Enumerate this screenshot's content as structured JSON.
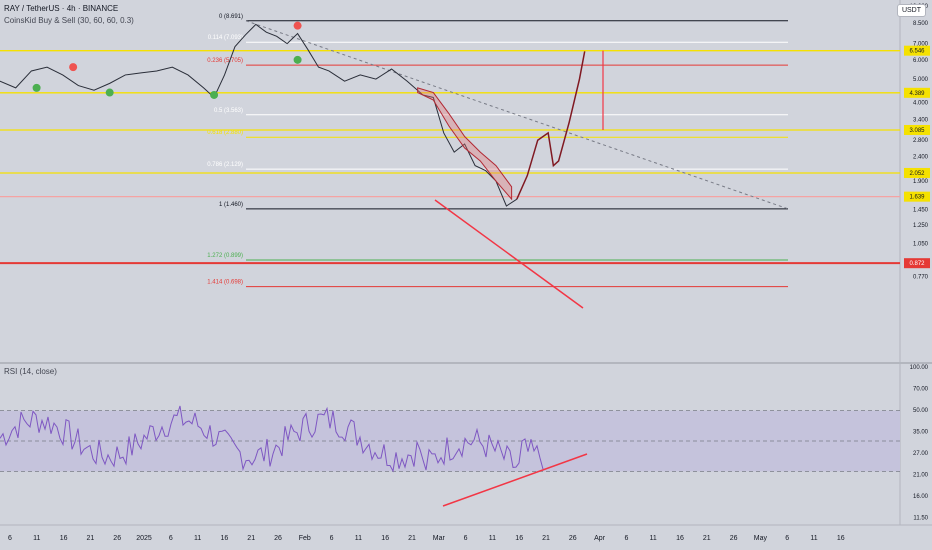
{
  "header": {
    "symbol": "RAY / TetherUS · 4h · BINANCE",
    "indicator": "CoinsKid Buy & Sell (30, 60, 60, 0.3)",
    "rsi_title": "RSI (14, close)",
    "currency_badge": "USDT"
  },
  "chart_data": [
    {
      "type": "line",
      "scale": "log",
      "price_axis_labels": [
        "10.000",
        "8.500",
        "7.000",
        "6.000",
        "5.000",
        "4.000",
        "3.400",
        "2.800",
        "2.400",
        "1.900",
        "1.450",
        "1.250",
        "1.050",
        "0.770"
      ],
      "price_flags": [
        {
          "value": "6.546",
          "color": "#f5e100"
        },
        {
          "value": "4.389",
          "color": "#f5e100"
        },
        {
          "value": "3.085",
          "color": "#f5e100"
        },
        {
          "value": "2.052",
          "color": "#f5e100"
        },
        {
          "value": "1.639",
          "color": "#f5e100"
        },
        {
          "value": "0.872",
          "color": "#e53935"
        }
      ],
      "fib_levels": [
        {
          "label": "0 (8.691)",
          "value": 8.691,
          "color": "#131722"
        },
        {
          "label": "0.114 (7.093)",
          "value": 7.093,
          "color": "#ffffff"
        },
        {
          "label": "0.236 (5.705)",
          "value": 5.705,
          "color": "#e53935"
        },
        {
          "label": "0.5 (3.563)",
          "value": 3.563,
          "color": "#ffffff"
        },
        {
          "label": "0.618 (2.880)",
          "value": 2.88,
          "color": "#f5e100"
        },
        {
          "label": "0.786 (2.129)",
          "value": 2.129,
          "color": "#ffffff"
        },
        {
          "label": "1 (1.460)",
          "value": 1.46,
          "color": "#131722"
        },
        {
          "label": "1.272 (0.899)",
          "value": 0.899,
          "color": "#4caf50"
        },
        {
          "label": "1.414 (0.698)",
          "value": 0.698,
          "color": "#e53935"
        }
      ],
      "horizontal_levels": [
        {
          "value": 6.546,
          "color": "#f5e100"
        },
        {
          "value": 4.389,
          "color": "#f5e100"
        },
        {
          "value": 3.085,
          "color": "#f5e100"
        },
        {
          "value": 2.052,
          "color": "#f5e100"
        },
        {
          "value": 1.639,
          "color": "#f5a3a3"
        },
        {
          "value": 0.872,
          "color": "#e53935"
        }
      ],
      "price_path": [
        [
          "2024-12-01",
          5.1
        ],
        [
          "2024-12-04",
          4.9
        ],
        [
          "2024-12-07",
          4.6
        ],
        [
          "2024-12-10",
          5.4
        ],
        [
          "2024-12-13",
          5.6
        ],
        [
          "2024-12-16",
          5.2
        ],
        [
          "2024-12-19",
          4.7
        ],
        [
          "2024-12-22",
          4.5
        ],
        [
          "2024-12-25",
          4.8
        ],
        [
          "2024-12-28",
          5.2
        ],
        [
          "2024-12-31",
          5.3
        ],
        [
          "2025-01-03",
          5.4
        ],
        [
          "2025-01-06",
          5.6
        ],
        [
          "2025-01-09",
          5.2
        ],
        [
          "2025-01-12",
          4.6
        ],
        [
          "2025-01-14",
          4.2
        ],
        [
          "2025-01-16",
          5.2
        ],
        [
          "2025-01-18",
          6.8
        ],
        [
          "2025-01-20",
          7.6
        ],
        [
          "2025-01-22",
          8.4
        ],
        [
          "2025-01-24",
          7.8
        ],
        [
          "2025-01-26",
          7.5
        ],
        [
          "2025-01-28",
          7.0
        ],
        [
          "2025-01-30",
          7.7
        ],
        [
          "2025-02-01",
          6.6
        ],
        [
          "2025-02-03",
          5.6
        ],
        [
          "2025-02-05",
          5.4
        ],
        [
          "2025-02-08",
          4.9
        ],
        [
          "2025-02-11",
          5.2
        ],
        [
          "2025-02-14",
          5.0
        ],
        [
          "2025-02-17",
          5.5
        ],
        [
          "2025-02-20",
          4.9
        ],
        [
          "2025-02-23",
          4.3
        ],
        [
          "2025-02-25",
          4.2
        ],
        [
          "2025-02-27",
          3.0
        ],
        [
          "2025-03-01",
          2.5
        ],
        [
          "2025-03-03",
          2.7
        ],
        [
          "2025-03-05",
          2.2
        ],
        [
          "2025-03-07",
          2.1
        ],
        [
          "2025-03-09",
          1.9
        ],
        [
          "2025-03-11",
          1.5
        ],
        [
          "2025-03-13",
          1.6
        ]
      ],
      "moving_average_band": [
        [
          "2025-02-22",
          4.6,
          4.4
        ],
        [
          "2025-02-25",
          4.4,
          4.1
        ],
        [
          "2025-02-28",
          3.6,
          3.2
        ],
        [
          "2025-03-03",
          2.9,
          2.6
        ],
        [
          "2025-03-06",
          2.5,
          2.3
        ],
        [
          "2025-03-09",
          2.2,
          1.9
        ],
        [
          "2025-03-12",
          1.8,
          1.6
        ]
      ],
      "projection_path": [
        [
          "2025-03-13",
          1.6
        ],
        [
          "2025-03-15",
          2.0
        ],
        [
          "2025-03-17",
          2.8
        ],
        [
          "2025-03-19",
          3.0
        ],
        [
          "2025-03-20",
          2.2
        ],
        [
          "2025-03-21",
          2.3
        ],
        [
          "2025-03-23",
          3.3
        ],
        [
          "2025-03-25",
          5.0
        ],
        [
          "2025-03-26",
          6.5
        ]
      ],
      "signals": [
        {
          "kind": "buy",
          "date": "2024-12-11",
          "value": 4.6,
          "color": "#4caf50"
        },
        {
          "kind": "sell",
          "date": "2024-12-18",
          "value": 5.6,
          "color": "#ef5350"
        },
        {
          "kind": "buy",
          "date": "2024-12-25",
          "value": 4.4,
          "color": "#4caf50"
        },
        {
          "kind": "buy",
          "date": "2025-01-14",
          "value": 4.3,
          "color": "#4caf50"
        },
        {
          "kind": "sell",
          "date": "2025-01-30",
          "value": 8.3,
          "color": "#ef5350"
        },
        {
          "kind": "buy",
          "date": "2025-01-30",
          "value": 6.0,
          "color": "#4caf50"
        }
      ],
      "x_axis_labels": [
        "6",
        "11",
        "16",
        "21",
        "26",
        "2025",
        "6",
        "11",
        "16",
        "21",
        "26",
        "Feb",
        "6",
        "11",
        "16",
        "21",
        "Mar",
        "6",
        "11",
        "16",
        "21",
        "26",
        "Apr",
        "6",
        "11",
        "16",
        "21",
        "26",
        "May",
        "6",
        "11",
        "16"
      ]
    },
    {
      "type": "line",
      "title": "RSI (14, close)",
      "axis_labels": [
        "100.00",
        "70.00",
        "50.00",
        "35.00",
        "27.00",
        "21.00",
        "16.00",
        "11.50"
      ],
      "band_upper": 70,
      "band_middle": 50,
      "band_lower": 30
    }
  ]
}
